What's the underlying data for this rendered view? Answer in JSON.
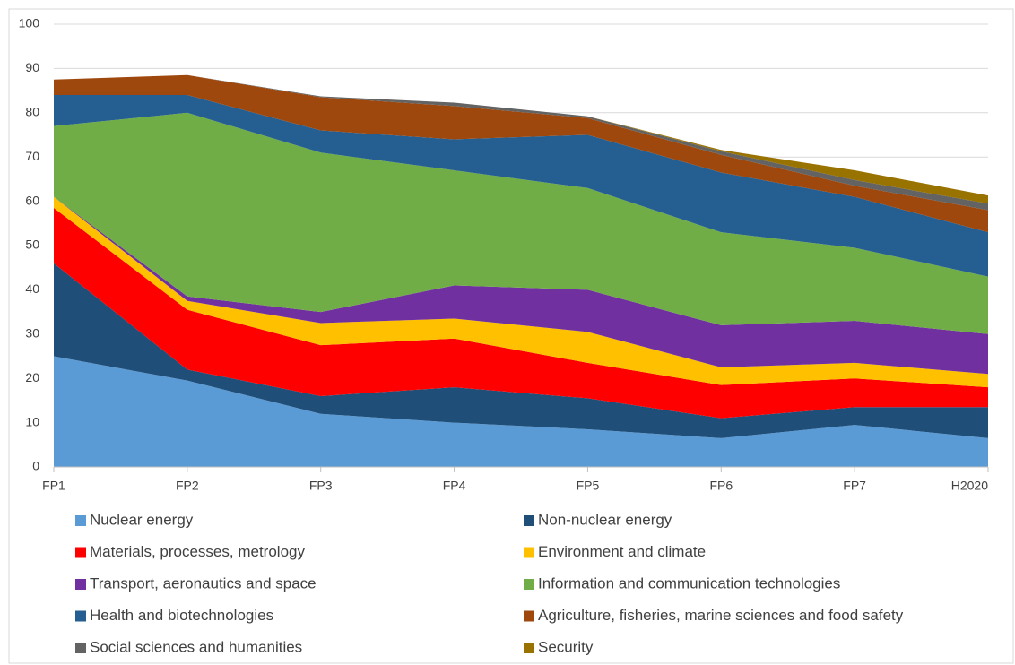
{
  "chart_data": {
    "type": "stacked_area",
    "categories": [
      "FP1",
      "FP2",
      "FP3",
      "FP4",
      "FP5",
      "FP6",
      "FP7",
      "H2020"
    ],
    "ylim": [
      0,
      100
    ],
    "yticks": [
      0,
      10,
      20,
      30,
      40,
      50,
      60,
      70,
      80,
      90,
      100
    ],
    "grid": true,
    "series": [
      {
        "name": "Nuclear energy",
        "color": "#5b9bd5",
        "values": [
          25,
          19.5,
          12,
          10,
          8.5,
          6.5,
          9.5,
          6.5
        ]
      },
      {
        "name": "Non-nuclear energy",
        "color": "#1f4e79",
        "values": [
          21,
          2.5,
          4,
          8,
          7,
          4.5,
          4,
          7
        ]
      },
      {
        "name": "Materials, processes, metrology",
        "color": "#ff0000",
        "values": [
          12.5,
          13.5,
          11.5,
          11,
          8,
          7.5,
          6.5,
          4.5
        ]
      },
      {
        "name": "Environment and climate",
        "color": "#ffc000",
        "values": [
          2.5,
          2,
          5,
          4.5,
          7,
          4,
          3.5,
          3
        ]
      },
      {
        "name": "Transport, aeronautics and space",
        "color": "#7030a0",
        "values": [
          0,
          1,
          2.5,
          7.5,
          9.5,
          9.5,
          9.5,
          9
        ]
      },
      {
        "name": "Information and communication technologies",
        "color": "#70ad47",
        "values": [
          16,
          41.5,
          36,
          26,
          23,
          21,
          16.5,
          13
        ]
      },
      {
        "name": "Health and biotechnologies",
        "color": "#255e91",
        "values": [
          7,
          4,
          5,
          7,
          12,
          13.5,
          11.5,
          10
        ]
      },
      {
        "name": "Agriculture, fisheries, marine sciences and food safety",
        "color": "#9e480e",
        "values": [
          3.5,
          4.5,
          7.5,
          7.5,
          3.8,
          4,
          2.5,
          5
        ]
      },
      {
        "name": "Social sciences and humanities",
        "color": "#636363",
        "values": [
          0,
          0,
          0.2,
          0.8,
          0.4,
          0.8,
          1.3,
          1.5
        ]
      },
      {
        "name": "Security",
        "color": "#997300",
        "values": [
          0,
          0,
          0,
          0,
          0,
          0.3,
          2.2,
          1.8
        ]
      }
    ]
  }
}
